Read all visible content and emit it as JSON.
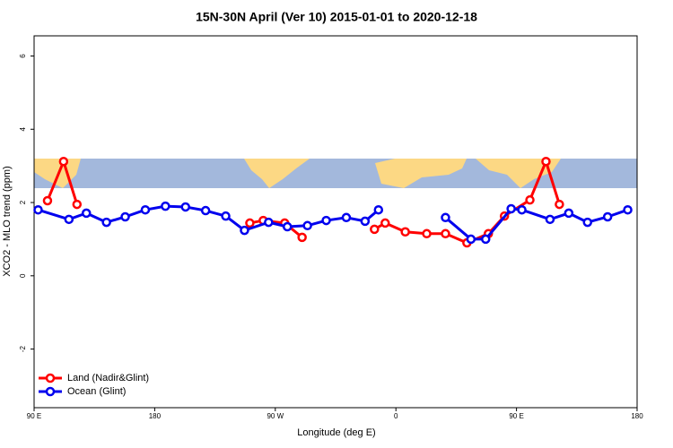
{
  "chart_data": {
    "type": "line",
    "title": "15N-30N April (Ver 10)   2015-01-01 to 2020-12-18",
    "x_label": "Longitude (deg E)",
    "y_label": "XCO2 - MLO trend (ppm)",
    "xlim": [
      90,
      540
    ],
    "ylim": [
      -3.6,
      6.55
    ],
    "xticks": [
      {
        "value": 90,
        "label": "90 E"
      },
      180,
      {
        "value": 270,
        "label": "90 W"
      },
      {
        "value": 360,
        "label": "0"
      },
      {
        "value": 450,
        "label": "90 E"
      },
      {
        "value": 540,
        "label": "180"
      }
    ],
    "yticks": [
      -2,
      0,
      2,
      4,
      6
    ],
    "legend": "bottom-left",
    "series": [
      {
        "name": "Land (Nadir&Glint)",
        "color": "#ff0000",
        "x": [
          100,
          112,
          122,
          null,
          251,
          261,
          277,
          290,
          null,
          344,
          352,
          367,
          383,
          397,
          413,
          429,
          441,
          460,
          472,
          482
        ],
        "values": [
          2.05,
          3.12,
          1.95,
          null,
          1.44,
          1.51,
          1.44,
          1.05,
          null,
          1.27,
          1.44,
          1.2,
          1.15,
          1.15,
          0.9,
          1.15,
          1.63,
          2.07,
          3.12,
          1.95
        ]
      },
      {
        "name": "Ocean (Glint)",
        "color": "#0000ee",
        "x": [
          93,
          116,
          129,
          144,
          158,
          173,
          188,
          203,
          218,
          233,
          247,
          265,
          279,
          294,
          308,
          323,
          337,
          347,
          null,
          397,
          416,
          427,
          446,
          454,
          475,
          489,
          503,
          518,
          533
        ],
        "values": [
          1.8,
          1.54,
          1.71,
          1.46,
          1.61,
          1.8,
          1.9,
          1.88,
          1.78,
          1.63,
          1.24,
          1.46,
          1.34,
          1.37,
          1.51,
          1.59,
          1.49,
          1.8,
          null,
          1.59,
          1.0,
          1.0,
          1.83,
          1.8,
          1.54,
          1.71,
          1.46,
          1.61,
          1.8
        ]
      }
    ]
  }
}
